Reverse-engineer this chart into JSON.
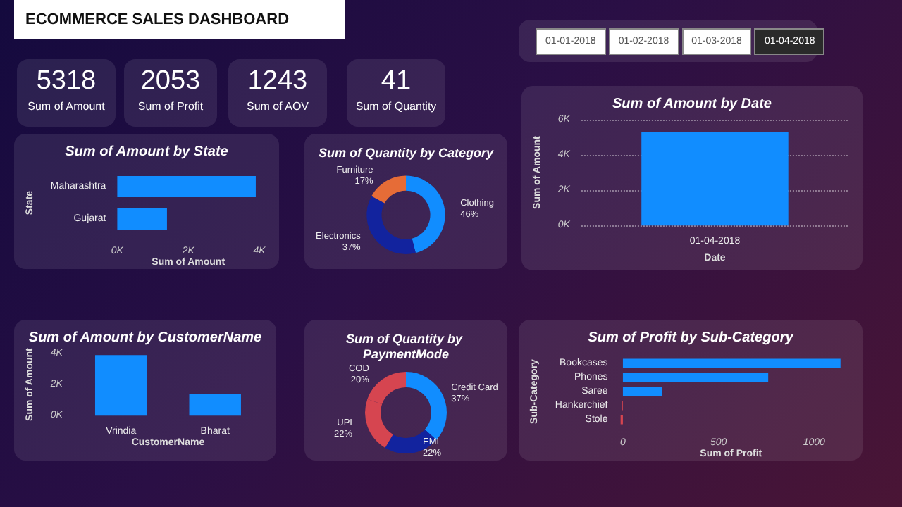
{
  "chart_data": [
    {
      "type": "other",
      "title": "ECOMMERCE SALES DASHBOARD",
      "categories": [
        "Sum of Amount",
        "Sum of Profit",
        "Sum of AOV",
        "Sum of Quantity"
      ],
      "values": [
        5318,
        2053,
        1243,
        41
      ],
      "data_labels": true
    },
    {
      "type": "other",
      "categories": [
        "01-01-2018",
        "01-02-2018",
        "01-03-2018",
        "01-04-2018"
      ]
    },
    {
      "type": "bar",
      "orientation": "horizontal",
      "title": "Sum of Amount by State",
      "xlabel": "Sum of Amount",
      "ylabel": "State",
      "categories": [
        "Maharashtra",
        "Gujarat"
      ],
      "values": [
        3900,
        1400
      ],
      "color": "#118dff",
      "xlim": [
        0,
        4000
      ],
      "xticks": [
        {
          "value": 0,
          "label": "0K"
        },
        {
          "value": 2000,
          "label": "2K"
        },
        {
          "value": 4000,
          "label": "4K"
        }
      ],
      "grid": false
    },
    {
      "type": "donut",
      "title": "Sum of Quantity by Category",
      "categories": [
        "Clothing",
        "Electronics",
        "Furniture"
      ],
      "values": [
        46,
        37,
        17
      ],
      "value_labels": [
        "46%",
        "37%",
        "17%"
      ],
      "colors": [
        "#118dff",
        "#12239e",
        "#e66c37"
      ]
    },
    {
      "type": "bar",
      "title": "Sum of Amount by Date",
      "xlabel": "Date",
      "ylabel": "Sum of Amount",
      "categories": [
        "01-04-2018"
      ],
      "values": [
        5300
      ],
      "color": "#118dff",
      "ylim": [
        0,
        6000
      ],
      "yticks": [
        {
          "value": 0,
          "label": "0K"
        },
        {
          "value": 2000,
          "label": "2K"
        },
        {
          "value": 4000,
          "label": "4K"
        },
        {
          "value": 6000,
          "label": "6K"
        }
      ],
      "grid": "y"
    },
    {
      "type": "bar",
      "title": "Sum of Amount by CustomerName",
      "xlabel": "CustomerName",
      "ylabel": "Sum of Amount",
      "categories": [
        "Vrindia",
        "Bharat"
      ],
      "values": [
        3900,
        1400
      ],
      "color": "#118dff",
      "ylim": [
        0,
        4000
      ],
      "yticks": [
        {
          "value": 0,
          "label": "0K"
        },
        {
          "value": 2000,
          "label": "2K"
        },
        {
          "value": 4000,
          "label": "4K"
        }
      ],
      "grid": false
    },
    {
      "type": "donut",
      "title": "Sum of Quantity by PaymentMode",
      "categories": [
        "Credit Card",
        "EMI",
        "UPI",
        "COD"
      ],
      "values": [
        36.6,
        21.9,
        21.9,
        19.6
      ],
      "value_labels": [
        "37%",
        "22%",
        "22%",
        "20%"
      ],
      "colors": [
        "#118dff",
        "#12239e",
        "#d64550",
        "#d64550"
      ]
    },
    {
      "type": "bar",
      "orientation": "horizontal",
      "title": "Sum of Profit by Sub-Category",
      "xlabel": "Sum of Profit",
      "ylabel": "Sub-Category",
      "categories": [
        "Bookcases",
        "Phones",
        "Saree",
        "Hankerchief",
        "Stole"
      ],
      "values": [
        1138,
        760,
        204,
        -3,
        -12
      ],
      "colors": [
        "#118dff",
        "#118dff",
        "#118dff",
        "#d64550",
        "#d64550"
      ],
      "xlim": [
        -20,
        1150
      ],
      "xticks": [
        0,
        500,
        1000
      ],
      "grid": false
    }
  ]
}
